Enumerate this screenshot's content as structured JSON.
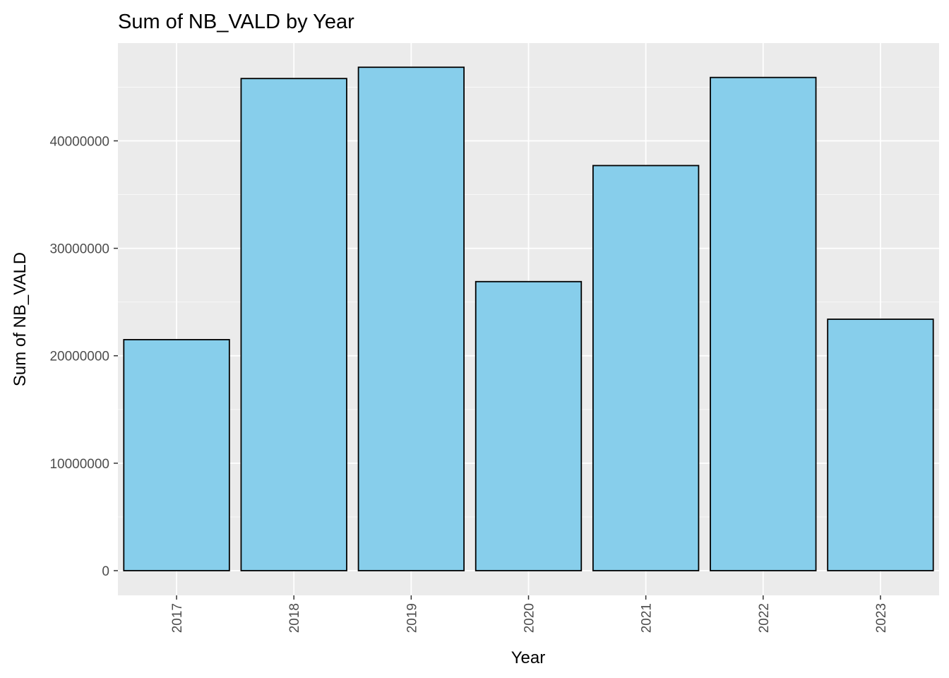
{
  "chart_data": {
    "type": "bar",
    "title": "Sum of NB_VALD by Year",
    "xlabel": "Year",
    "ylabel": "Sum of NB_VALD",
    "categories": [
      "2017",
      "2018",
      "2019",
      "2020",
      "2021",
      "2022",
      "2023"
    ],
    "values": [
      21500000,
      45800000,
      46850000,
      26900000,
      37700000,
      45900000,
      23400000
    ],
    "ylim": [
      -2300000,
      49100000
    ],
    "yticks": [
      0,
      10000000,
      20000000,
      30000000,
      40000000
    ],
    "ytick_labels": [
      "0",
      "10000000",
      "20000000",
      "30000000",
      "40000000"
    ],
    "grid": true,
    "x_tick_rotation": "vertical",
    "colors": {
      "bar_fill": "#87CEEB",
      "bar_outline": "#000000",
      "panel_background": "#EBEBEB",
      "grid_major": "#FFFFFF",
      "tick_text": "#4D4D4D"
    }
  }
}
